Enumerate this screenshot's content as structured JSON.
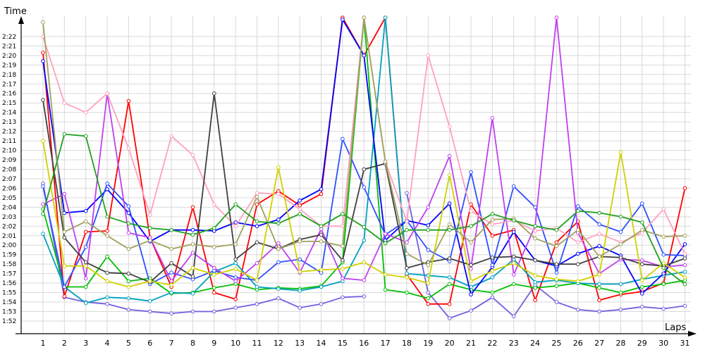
{
  "chart_data": {
    "type": "line",
    "xlabel": "Laps",
    "ylabel": "Time",
    "x": [
      1,
      2,
      3,
      4,
      5,
      6,
      7,
      8,
      9,
      10,
      11,
      12,
      13,
      14,
      15,
      16,
      17,
      18,
      19,
      20,
      21,
      22,
      23,
      24,
      25,
      26,
      27,
      28,
      29,
      30,
      31
    ],
    "x_tick_labels": [
      "1",
      "2",
      "3",
      "4",
      "5",
      "6",
      "7",
      "8",
      "9",
      "10",
      "11",
      "12",
      "13",
      "14",
      "15",
      "16",
      "17",
      "18",
      "19",
      "20",
      "21",
      "22",
      "23",
      "24",
      "25",
      "26",
      "27",
      "28",
      "29",
      "30",
      "31"
    ],
    "y_ticks_seconds": [
      112,
      113,
      114,
      115,
      116,
      117,
      118,
      119,
      120,
      121,
      122,
      123,
      124,
      125,
      126,
      127,
      128,
      129,
      130,
      131,
      132,
      133,
      134,
      135,
      136,
      137,
      138,
      139,
      140,
      141,
      142
    ],
    "y_tick_labels": [
      "1:52",
      "1:53",
      "1:54",
      "1:55",
      "1:56",
      "1:57",
      "1:58",
      "1:59",
      "2:00",
      "2:01",
      "2:02",
      "2:03",
      "2:04",
      "2:05",
      "2:06",
      "2:07",
      "2:08",
      "2:09",
      "2:10",
      "2:11",
      "2:12",
      "2:13",
      "2:14",
      "2:15",
      "2:16",
      "2:17",
      "2:18",
      "2:19",
      "2:20",
      "2:21",
      "2:22"
    ],
    "xlim": [
      0.5,
      31.3
    ],
    "ylim_seconds": [
      111.2,
      143.3
    ],
    "grid": true,
    "legend": "none",
    "series": [
      {
        "color": "#7060e0",
        "values": [
          126.5,
          114.5,
          114.0,
          113.8,
          113.2,
          113.0,
          112.8,
          113.0,
          113.0,
          113.4,
          113.8,
          114.4,
          113.4,
          113.8,
          114.5,
          114.6,
          null,
          125.5,
          115.0,
          112.3,
          113.1,
          114.5,
          112.5,
          115.8,
          114.0,
          113.2,
          113.0,
          113.2,
          113.5,
          113.3,
          113.6
        ]
      },
      {
        "color": "#ff0000",
        "values": [
          140.3,
          114.6,
          121.4,
          121.5,
          135.2,
          120.8,
          115.6,
          124.0,
          115.0,
          114.3,
          124.3,
          125.7,
          124.2,
          125.4,
          144.0,
          140.0,
          144.0,
          116.9,
          113.8,
          113.8,
          124.3,
          121.0,
          121.6,
          114.2,
          120.3,
          122.5,
          114.2,
          114.8,
          115.1,
          116.0,
          126.0
        ]
      },
      {
        "color": "#00c000",
        "values": [
          123.8,
          115.6,
          115.6,
          118.8,
          116.2,
          116.5,
          114.9,
          115.0,
          115.5,
          115.9,
          115.3,
          115.5,
          115.4,
          115.7,
          118.2,
          144.0,
          115.3,
          115.0,
          114.4,
          115.9,
          115.3,
          115.0,
          115.9,
          115.5,
          115.7,
          116.0,
          115.5,
          115.0,
          115.6,
          115.9,
          116.3
        ]
      },
      {
        "color": "#00a0c0",
        "values": [
          121.2,
          115.6,
          113.9,
          114.5,
          114.4,
          114.1,
          115.0,
          114.9,
          117.2,
          118.1,
          115.6,
          115.4,
          115.2,
          115.6,
          116.2,
          120.5,
          144.0,
          117.0,
          116.8,
          116.6,
          115.6,
          116.6,
          118.5,
          116.1,
          116.3,
          116.0,
          115.9,
          115.9,
          116.4,
          116.8,
          117.2
        ]
      },
      {
        "color": "#0000ff",
        "values": [
          139.4,
          123.4,
          123.6,
          125.9,
          123.4,
          120.4,
          121.6,
          121.6,
          121.5,
          122.4,
          122.0,
          122.7,
          124.7,
          125.9,
          143.8,
          140.0,
          120.5,
          122.6,
          122.1,
          124.4,
          114.8,
          117.7,
          121.4,
          118.4,
          117.8,
          119.1,
          119.9,
          118.9,
          114.9,
          117.0,
          120.1
        ]
      },
      {
        "color": "#3050ff",
        "values": [
          126.2,
          115.6,
          119.8,
          126.5,
          124.1,
          115.9,
          117.1,
          116.4,
          117.3,
          116.6,
          116.3,
          118.2,
          118.5,
          117.1,
          131.2,
          126.1,
          121.1,
          122.6,
          119.5,
          118.3,
          127.7,
          117.9,
          126.2,
          124.0,
          117.1,
          124.1,
          122.2,
          121.4,
          124.4,
          119.0,
          118.9
        ]
      },
      {
        "color": "#c040f0",
        "values": [
          124.3,
          125.4,
          116.5,
          136.0,
          121.3,
          120.8,
          116.2,
          119.2,
          117.6,
          116.2,
          118.1,
          120.2,
          117.1,
          121.7,
          116.5,
          116.3,
          121.2,
          120.3,
          124.0,
          129.4,
          117.5,
          133.4,
          116.9,
          122.0,
          144.0,
          121.3,
          117.0,
          118.5,
          118.4,
          117.7,
          117.9
        ]
      },
      {
        "color": "#ffa0c0",
        "values": [
          142.0,
          135.0,
          134.0,
          136.0,
          130.2,
          123.2,
          131.5,
          129.5,
          124.3,
          122.0,
          125.5,
          125.4,
          123.8,
          122.0,
          122.0,
          144.0,
          128.8,
          122.5,
          140.0,
          132.5,
          123.6,
          122.2,
          122.6,
          121.5,
          121.8,
          120.3,
          121.2,
          120.3,
          121.3,
          123.8,
          119.1
        ]
      },
      {
        "color": "#404040",
        "values": [
          135.3,
          120.8,
          118.2,
          117.1,
          117.0,
          116.1,
          118.1,
          116.7,
          136.0,
          118.5,
          120.3,
          119.6,
          120.6,
          121.1,
          118.4,
          128.0,
          128.6,
          117.6,
          118.2,
          118.6,
          117.9,
          118.7,
          118.8,
          118.4,
          118.0,
          118.0,
          118.8,
          118.7,
          118.0,
          117.8,
          118.6
        ]
      },
      {
        "color": "#d0d000",
        "values": [
          131.0,
          117.8,
          117.8,
          116.2,
          115.6,
          116.2,
          115.8,
          117.6,
          116.9,
          117.5,
          116.3,
          128.2,
          117.2,
          117.4,
          117.5,
          118.2,
          116.9,
          116.6,
          116.0,
          127.4,
          116.2,
          117.3,
          118.1,
          116.8,
          116.4,
          116.2,
          116.9,
          129.8,
          116.3,
          118.1,
          116.6
        ]
      },
      {
        "color": "#a0a060",
        "values": [
          143.5,
          121.4,
          122.5,
          121.0,
          119.6,
          120.5,
          119.6,
          120.1,
          119.8,
          120.1,
          125.1,
          119.6,
          120.4,
          120.4,
          119.9,
          144.0,
          128.8,
          119.1,
          117.9,
          122.2,
          120.3,
          122.7,
          122.8,
          120.7,
          119.9,
          121.6,
          118.8,
          120.1,
          121.6,
          120.9,
          121.0
        ]
      },
      {
        "color": "#20a020",
        "values": [
          123.3,
          131.7,
          131.5,
          123.0,
          122.3,
          121.8,
          121.6,
          121.1,
          121.8,
          124.3,
          122.5,
          122.3,
          123.3,
          122.0,
          123.3,
          121.9,
          120.2,
          121.6,
          121.6,
          121.6,
          122.0,
          123.3,
          122.6,
          122.0,
          121.6,
          123.6,
          123.4,
          123.0,
          122.4,
          117.6,
          115.9
        ]
      }
    ]
  }
}
